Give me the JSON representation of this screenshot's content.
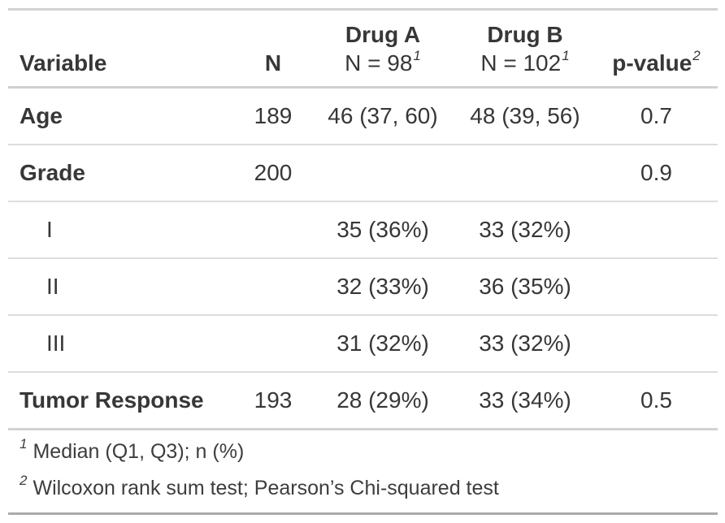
{
  "chart_data": {
    "type": "table",
    "title": "",
    "columns": [
      "Variable",
      "N",
      "Drug A, N = 98",
      "Drug B, N = 102",
      "p-value"
    ],
    "rows": [
      [
        "Age",
        "189",
        "46 (37, 60)",
        "48 (39, 56)",
        "0.7"
      ],
      [
        "Grade",
        "200",
        "",
        "",
        "0.9"
      ],
      [
        "I",
        "",
        "35 (36%)",
        "33 (32%)",
        ""
      ],
      [
        "II",
        "",
        "32 (33%)",
        "36 (35%)",
        ""
      ],
      [
        "III",
        "",
        "31 (32%)",
        "33 (32%)",
        ""
      ],
      [
        "Tumor Response",
        "193",
        "28 (29%)",
        "33 (34%)",
        "0.5"
      ]
    ],
    "footnotes": [
      "1 Median (Q1, Q3); n (%)",
      "2 Wilcoxon rank sum test; Pearson’s Chi-squared test"
    ]
  },
  "table": {
    "header": {
      "variable": "Variable",
      "n": "N",
      "drug_a": {
        "line1": "Drug A",
        "line2": "N = 98",
        "mark": "1"
      },
      "drug_b": {
        "line1": "Drug B",
        "line2": "N = 102",
        "mark": "1"
      },
      "p_value": {
        "label": "p-value",
        "mark": "2"
      }
    },
    "rows": [
      {
        "variable": "Age",
        "n": "189",
        "drug_a": "46 (37, 60)",
        "drug_b": "48 (39, 56)",
        "p": "0.7"
      },
      {
        "variable": "Grade",
        "n": "200",
        "drug_a": "",
        "drug_b": "",
        "p": "0.9"
      },
      {
        "variable": "I",
        "n": "",
        "drug_a": "35 (36%)",
        "drug_b": "33 (32%)",
        "p": ""
      },
      {
        "variable": "II",
        "n": "",
        "drug_a": "32 (33%)",
        "drug_b": "36 (35%)",
        "p": ""
      },
      {
        "variable": "III",
        "n": "",
        "drug_a": "31 (32%)",
        "drug_b": "33 (32%)",
        "p": ""
      },
      {
        "variable": "Tumor Response",
        "n": "193",
        "drug_a": "28 (29%)",
        "drug_b": "33 (34%)",
        "p": "0.5"
      }
    ],
    "footnotes": [
      {
        "mark": "1",
        "text": "Median (Q1, Q3); n (%)"
      },
      {
        "mark": "2",
        "text": "Wilcoxon rank sum test; Pearson’s Chi-squared test"
      }
    ]
  },
  "colors": {
    "text": "#373737",
    "border_top": "#d2d2d2",
    "border_header": "#d0d0d0",
    "border_row": "#dcdcdc",
    "border_section": "#d3d3d3",
    "border_bottom": "#ababab",
    "background": "#ffffff"
  }
}
